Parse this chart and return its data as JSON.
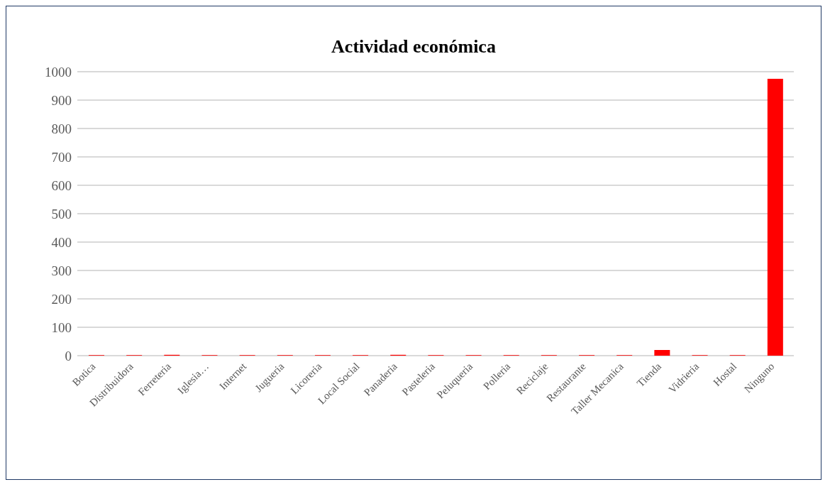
{
  "chart_data": {
    "type": "bar",
    "title": "Actividad económica",
    "categories": [
      "Botica",
      "Distribuidora",
      "Ferreteria",
      "Iglesia…",
      "Internet",
      "Jugueria",
      "Licoreria",
      "Local Social",
      "Panaderia",
      "Pasteleria",
      "Peluqueria",
      "Polleria",
      "Reciclaje",
      "Restaurante",
      "Taller Mecanica",
      "Tienda",
      "Vidrieria",
      "Hostal",
      "Ninguno"
    ],
    "values": [
      2,
      2,
      3,
      2,
      2,
      2,
      2,
      2,
      3,
      2,
      2,
      2,
      2,
      2,
      2,
      20,
      2,
      2,
      975
    ],
    "color": "#ff0000",
    "ylim": [
      0,
      1000
    ],
    "yticks": [
      0,
      100,
      200,
      300,
      400,
      500,
      600,
      700,
      800,
      900,
      1000
    ],
    "grid": "y"
  }
}
